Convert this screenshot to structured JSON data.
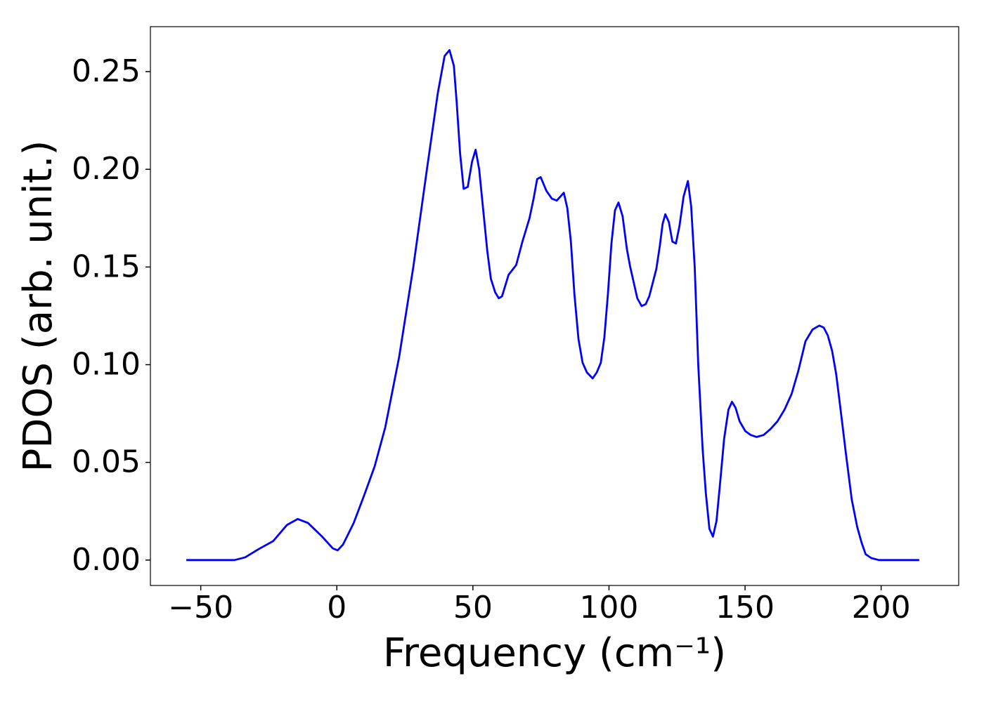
{
  "chart_data": {
    "type": "line",
    "x_label": "Frequency (cm⁻¹)",
    "y_label": "PDOS (arb. unit.)",
    "xlim": [
      -68.5,
      228.5
    ],
    "ylim": [
      -0.013,
      0.273
    ],
    "xticks": [
      {
        "value": -50,
        "label": "−50"
      },
      0,
      50,
      100,
      150,
      200
    ],
    "yticks": [
      {
        "value": 0,
        "label": "0.00"
      },
      {
        "value": 0.05,
        "label": "0.05"
      },
      {
        "value": 0.1,
        "label": "0.10"
      },
      {
        "value": 0.15,
        "label": "0.15"
      },
      {
        "value": 0.2,
        "label": "0.20"
      },
      {
        "value": 0.25,
        "label": "0.25"
      }
    ],
    "grid": false,
    "series": [
      {
        "color": "#0000ff",
        "x": [
          -55.3,
          -37.6,
          -33.7,
          -28.6,
          -23.4,
          -18.3,
          -14.4,
          -10.6,
          -5.4,
          -1.5,
          0.3,
          2.3,
          6.2,
          10.0,
          13.9,
          17.8,
          22.9,
          28.1,
          33.2,
          37.1,
          39.6,
          41.4,
          43.0,
          44.0,
          45.3,
          46.6,
          48.1,
          49.7,
          51.0,
          52.3,
          53.8,
          55.3,
          56.6,
          58.2,
          59.5,
          60.7,
          63.1,
          65.9,
          68.2,
          70.8,
          72.3,
          73.6,
          74.9,
          77.0,
          79.0,
          80.8,
          82.1,
          83.4,
          84.7,
          86.0,
          87.3,
          88.8,
          90.3,
          91.9,
          94.0,
          95.5,
          97.0,
          98.3,
          99.6,
          100.9,
          102.2,
          103.5,
          105.0,
          106.6,
          107.8,
          109.1,
          110.4,
          112.0,
          113.5,
          114.8,
          116.1,
          117.4,
          118.7,
          119.7,
          120.7,
          122.0,
          123.3,
          124.6,
          125.9,
          127.4,
          129.0,
          130.2,
          131.5,
          132.8,
          134.4,
          135.6,
          136.9,
          138.2,
          139.5,
          140.8,
          142.3,
          143.9,
          145.2,
          146.5,
          148.0,
          150.1,
          152.1,
          154.2,
          156.8,
          159.3,
          161.9,
          164.5,
          167.1,
          169.6,
          172.2,
          174.8,
          177.3,
          178.9,
          180.4,
          182.0,
          183.5,
          185.1,
          187.1,
          189.2,
          191.2,
          192.8,
          194.3,
          196.4,
          199.2,
          214.0
        ],
        "values": [
          0,
          0,
          0.0014,
          0.0057,
          0.0097,
          0.018,
          0.021,
          0.019,
          0.012,
          0.006,
          0.005,
          0.008,
          0.019,
          0.033,
          0.048,
          0.068,
          0.104,
          0.15,
          0.201,
          0.239,
          0.258,
          0.261,
          0.253,
          0.235,
          0.208,
          0.19,
          0.191,
          0.204,
          0.21,
          0.2,
          0.179,
          0.158,
          0.144,
          0.137,
          0.134,
          0.135,
          0.146,
          0.151,
          0.163,
          0.175,
          0.185,
          0.195,
          0.196,
          0.189,
          0.185,
          0.184,
          0.186,
          0.188,
          0.18,
          0.163,
          0.136,
          0.113,
          0.101,
          0.096,
          0.093,
          0.096,
          0.101,
          0.114,
          0.136,
          0.162,
          0.179,
          0.183,
          0.176,
          0.159,
          0.15,
          0.142,
          0.134,
          0.13,
          0.131,
          0.135,
          0.142,
          0.149,
          0.161,
          0.172,
          0.177,
          0.173,
          0.163,
          0.162,
          0.171,
          0.186,
          0.194,
          0.181,
          0.15,
          0.1,
          0.057,
          0.034,
          0.016,
          0.012,
          0.02,
          0.039,
          0.062,
          0.077,
          0.081,
          0.078,
          0.071,
          0.066,
          0.064,
          0.063,
          0.064,
          0.067,
          0.071,
          0.077,
          0.085,
          0.097,
          0.112,
          0.118,
          0.12,
          0.119,
          0.115,
          0.107,
          0.095,
          0.077,
          0.054,
          0.031,
          0.017,
          0.009,
          0.003,
          0.001,
          0,
          0
        ]
      }
    ]
  }
}
